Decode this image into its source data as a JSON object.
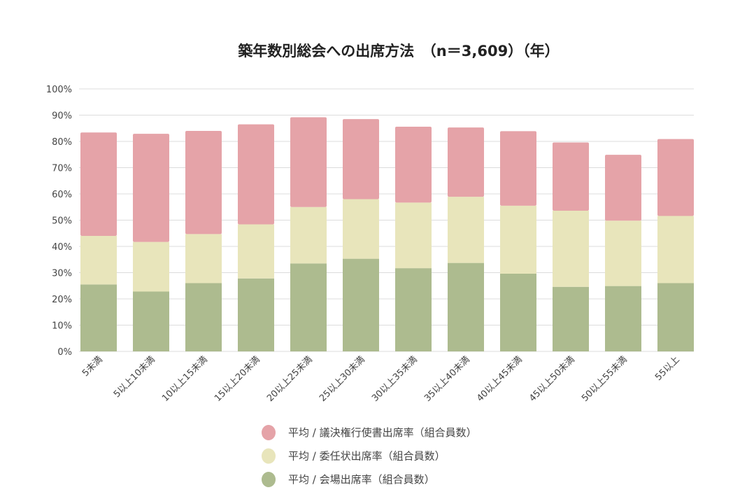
{
  "chart_data": {
    "type": "bar",
    "stacked": true,
    "title": "築年数別総会への出席方法　（n＝3,609）（年）",
    "xlabel": "",
    "ylabel": "",
    "ylim": [
      0,
      100
    ],
    "yticks": [
      "0%",
      "10%",
      "20%",
      "30%",
      "40%",
      "50%",
      "60%",
      "70%",
      "80%",
      "90%",
      "100%"
    ],
    "grid": true,
    "legend_position": "bottom",
    "categories": [
      "5未満",
      "5以上10未満",
      "10以上15未満",
      "15以上20未満",
      "20以上25未満",
      "25以上30未満",
      "30以上35未満",
      "35以上40未満",
      "40以上45未満",
      "45以上50未満",
      "50以上55未満",
      "55以上"
    ],
    "series": [
      {
        "name": "平均 / 会場出席率（組合員数）",
        "color": "#adbb8f",
        "values": [
          25.5,
          22.8,
          26.0,
          27.8,
          33.5,
          35.3,
          31.7,
          33.7,
          29.6,
          24.6,
          24.9,
          26.0
        ]
      },
      {
        "name": "平均 / 委任状出席率（組合員数）",
        "color": "#e8e5bb",
        "values": [
          18.5,
          18.9,
          18.7,
          20.6,
          21.5,
          22.7,
          25.0,
          25.2,
          25.9,
          29.0,
          24.9,
          25.6
        ]
      },
      {
        "name": "平均 / 議決権行使書出席率（組合員数）",
        "color": "#e5a3a8",
        "values": [
          39.4,
          41.2,
          39.3,
          38.1,
          34.2,
          30.5,
          28.9,
          26.4,
          28.4,
          26.0,
          25.1,
          29.3
        ]
      }
    ],
    "legend_order": [
      2,
      1,
      0
    ]
  }
}
